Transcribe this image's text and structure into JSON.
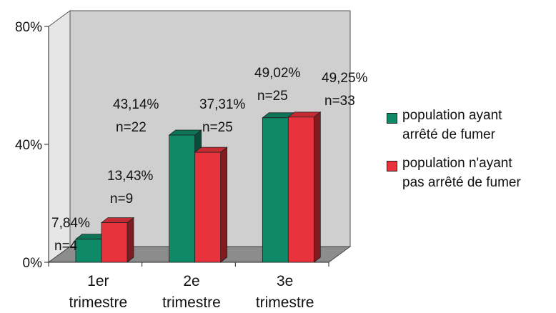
{
  "chart_data": {
    "type": "bar",
    "categories": [
      "1er trimestre",
      "2e trimestre",
      "3e trimestre"
    ],
    "category_lines": [
      [
        "1er",
        "trimestre"
      ],
      [
        "2e",
        "trimestre"
      ],
      [
        "3e",
        "trimestre"
      ]
    ],
    "series": [
      {
        "name": "population ayant arrêté de fumer",
        "legend_lines": [
          "population ayant",
          "arrêté de fumer"
        ],
        "color": "#0e8a68",
        "values": [
          7.84,
          43.14,
          49.02
        ],
        "labels": [
          "7,84%",
          "43,14%",
          "49,02%"
        ],
        "n_labels": [
          "n=4",
          "n=22",
          "n=25"
        ]
      },
      {
        "name": "population n'ayant pas arrêté de fumer",
        "legend_lines": [
          "population n'ayant",
          "pas arrêté de fumer"
        ],
        "color": "#e8323c",
        "values": [
          13.43,
          37.31,
          49.25
        ],
        "labels": [
          "13,43%",
          "37,31%",
          "49,25%"
        ],
        "n_labels": [
          "n=9",
          "n=25",
          "n=33"
        ]
      }
    ],
    "yticks": [
      "0%",
      "40%",
      "80%"
    ],
    "ylim": [
      0,
      80
    ],
    "y_unit": "%",
    "grid": false,
    "legend_position": "right"
  },
  "colors": {
    "wall": "#cfcfcf",
    "floor": "#8c8c8c"
  }
}
